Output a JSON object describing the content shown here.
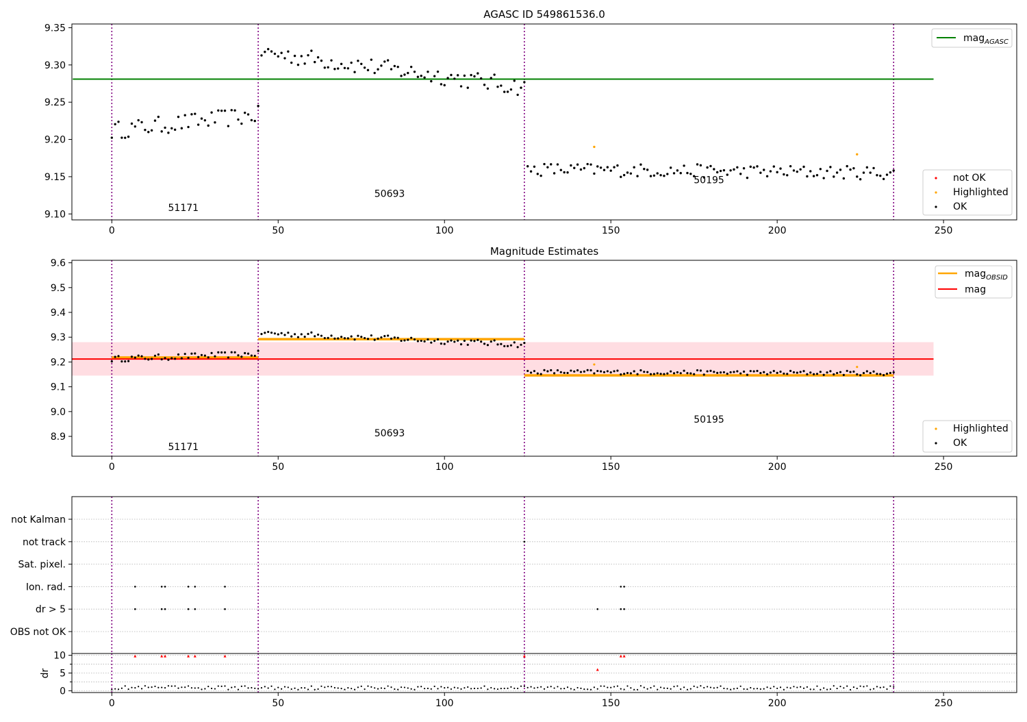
{
  "chart_data": [
    {
      "type": "scatter",
      "title": "AGASC ID 549861536.0",
      "xlim": [
        -12,
        272
      ],
      "ylim": [
        9.092,
        9.355
      ],
      "xticks": [
        0,
        50,
        100,
        150,
        200,
        250
      ],
      "yticks": [
        9.1,
        9.15,
        9.2,
        9.25,
        9.3,
        9.35
      ],
      "ytick_labels": [
        "9.10",
        "9.15",
        "9.20",
        "9.25",
        "9.30",
        "9.35"
      ],
      "grid": false,
      "obsid_boundaries": [
        0,
        44,
        124,
        235
      ],
      "obsid_labels": [
        {
          "text": "51171",
          "x": 21.5,
          "y": 9.104
        },
        {
          "text": "50693",
          "x": 83.5,
          "y": 9.123
        },
        {
          "text": "50195",
          "x": 179.5,
          "y": 9.141
        }
      ],
      "mag_agasc": {
        "value": 9.281,
        "x_range": [
          0,
          247
        ]
      },
      "legends": [
        {
          "placement": "upper right",
          "entries": [
            {
              "label": "mag",
              "sub": "AGASC",
              "color": "#008000",
              "kind": "line"
            }
          ]
        },
        {
          "placement": "lower right",
          "entries": [
            {
              "label": "not OK",
              "color": "#ff0000",
              "kind": "dot"
            },
            {
              "label": "Highlighted",
              "color": "#ffa500",
              "kind": "dot"
            },
            {
              "label": "OK",
              "color": "#000000",
              "kind": "dot"
            }
          ]
        }
      ],
      "highlighted_points": [
        [
          145,
          9.19
        ],
        [
          224,
          9.18
        ]
      ],
      "segments": [
        {
          "x": [
            0,
            44
          ],
          "mag": 9.218,
          "start": 9.212,
          "end": 9.233,
          "noise": 0.012
        },
        {
          "x": [
            44,
            124
          ],
          "mag": 9.292,
          "start": 9.318,
          "end": 9.27,
          "noise": 0.012
        },
        {
          "x": [
            124,
            235
          ],
          "mag": 9.146,
          "start": 9.16,
          "end": 9.155,
          "noise": 0.009
        }
      ]
    },
    {
      "type": "scatter",
      "title": "Magnitude Estimates",
      "xlim": [
        -12,
        272
      ],
      "ylim": [
        8.82,
        9.61
      ],
      "xticks": [
        0,
        50,
        100,
        150,
        200,
        250
      ],
      "yticks": [
        8.9,
        9.0,
        9.1,
        9.2,
        9.3,
        9.4,
        9.5,
        9.6
      ],
      "ytick_labels": [
        "8.9",
        "9.0",
        "9.1",
        "9.2",
        "9.3",
        "9.4",
        "9.5",
        "9.6"
      ],
      "grid": false,
      "obsid_boundaries": [
        0,
        44,
        124,
        235
      ],
      "obsid_labels": [
        {
          "text": "51171",
          "x": 21.5,
          "y": 8.845
        },
        {
          "text": "50693",
          "x": 83.5,
          "y": 8.9
        },
        {
          "text": "50195",
          "x": 179.5,
          "y": 8.955
        }
      ],
      "mag": {
        "value": 9.212,
        "band": [
          9.145,
          9.28
        ],
        "x_range": [
          -12,
          247
        ]
      },
      "mag_obsid": [
        {
          "x": [
            0,
            44
          ],
          "value": 9.218
        },
        {
          "x": [
            44,
            124
          ],
          "value": 9.292
        },
        {
          "x": [
            124,
            235
          ],
          "value": 9.146
        }
      ],
      "legends": [
        {
          "placement": "upper right",
          "entries": [
            {
              "label": "mag",
              "sub": "OBSID",
              "color": "#ffa500",
              "kind": "line"
            },
            {
              "label": "mag",
              "color": "#ff0000",
              "kind": "line"
            }
          ]
        },
        {
          "placement": "lower right",
          "entries": [
            {
              "label": "Highlighted",
              "color": "#ffa500",
              "kind": "dot"
            },
            {
              "label": "OK",
              "color": "#000000",
              "kind": "dot"
            }
          ]
        }
      ]
    },
    {
      "type": "scatter",
      "title": "",
      "xlim": [
        -12,
        272
      ],
      "flag_categories": [
        "OBS not OK",
        "dr > 5",
        "Ion. rad.",
        "Sat. pixel.",
        "not track",
        "not Kalman"
      ],
      "flags": {
        "dr > 5": [
          7,
          15,
          16,
          23,
          25,
          34,
          146,
          153,
          154
        ],
        "Ion. rad.": [
          7,
          15,
          16,
          23,
          25,
          34,
          153,
          154
        ],
        "not track": [
          124
        ]
      },
      "dr": {
        "ylabel": "dr",
        "yticks": [
          0,
          5,
          10
        ],
        "ylim": [
          -0.5,
          10.5
        ],
        "outliers_red": [
          [
            7,
            9.8
          ],
          [
            15,
            9.8
          ],
          [
            16,
            9.8
          ],
          [
            23,
            9.8
          ],
          [
            25,
            9.8
          ],
          [
            34,
            9.8
          ],
          [
            124,
            9.8
          ],
          [
            146,
            6.0
          ],
          [
            153,
            9.8
          ],
          [
            154,
            9.8
          ]
        ]
      }
    }
  ]
}
